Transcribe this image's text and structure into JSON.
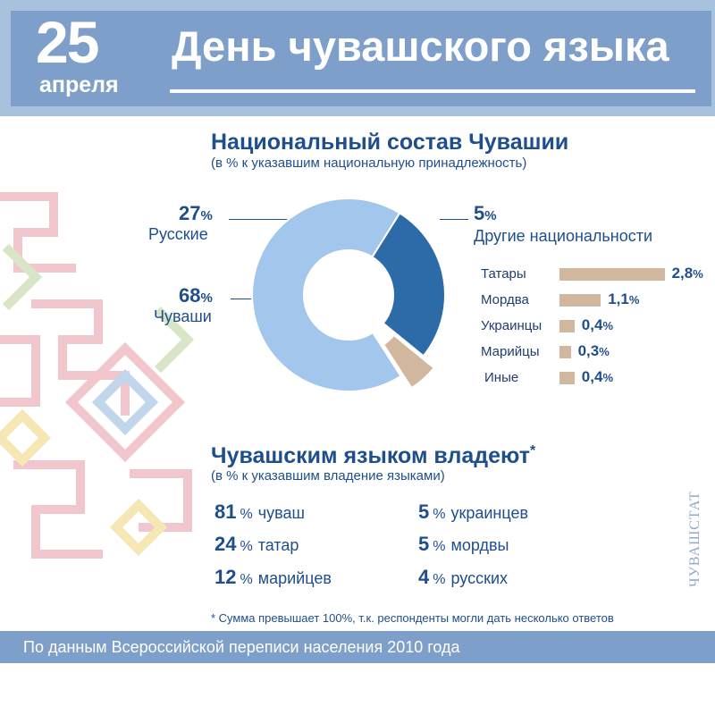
{
  "header": {
    "date_num": "25",
    "date_month": "апреля",
    "title": "День чувашского языка"
  },
  "composition": {
    "title": "Национальный состав Чувашии",
    "subtitle": "(в % к указавшим национальную принадлежность)",
    "russians": {
      "value": "27",
      "label": "Русские"
    },
    "chuvash": {
      "value": "68",
      "label": "Чуваши"
    },
    "others": {
      "value": "5",
      "label": "Другие национальности"
    },
    "pct_sign": "%"
  },
  "chart_data": [
    {
      "type": "pie",
      "categories": [
        "Чуваши",
        "Русские",
        "Другие национальности"
      ],
      "values": [
        68,
        27,
        5
      ],
      "colors": [
        "#a3c6ec",
        "#2d6aa8",
        "#d2b79f"
      ],
      "donut": true
    },
    {
      "type": "bar",
      "categories": [
        "Татары",
        "Мордва",
        "Украинцы",
        "Марийцы",
        "Иные"
      ],
      "values": [
        2.8,
        1.1,
        0.4,
        0.3,
        0.4
      ],
      "value_labels": [
        "2,8",
        "1,1",
        "0,4",
        "0,3",
        "0,4"
      ],
      "color": "#d2b79f",
      "orientation": "horizontal"
    }
  ],
  "languages": {
    "title": "Чувашским языком владеют",
    "asterisk": "*",
    "subtitle": "(в % к указавшим владение языками)",
    "items": [
      {
        "value": "81",
        "label": "чуваш"
      },
      {
        "value": "24",
        "label": "татар"
      },
      {
        "value": "12",
        "label": "марийцев"
      },
      {
        "value": "5",
        "label": "украинцев"
      },
      {
        "value": "5",
        "label": "мордвы"
      },
      {
        "value": "4",
        "label": "русских"
      }
    ]
  },
  "note": "* Сумма превышает 100%, т.к. респонденты могли дать несколько ответов",
  "footer": "По данным Всероссийской переписи населения 2010 года",
  "source": "ЧУВАШСТАТ",
  "colors": {
    "dark_blue": "#1f4e8c",
    "header": "#7d9fc9",
    "light_blue": "#a3c6ec",
    "beige": "#d2b79f"
  }
}
